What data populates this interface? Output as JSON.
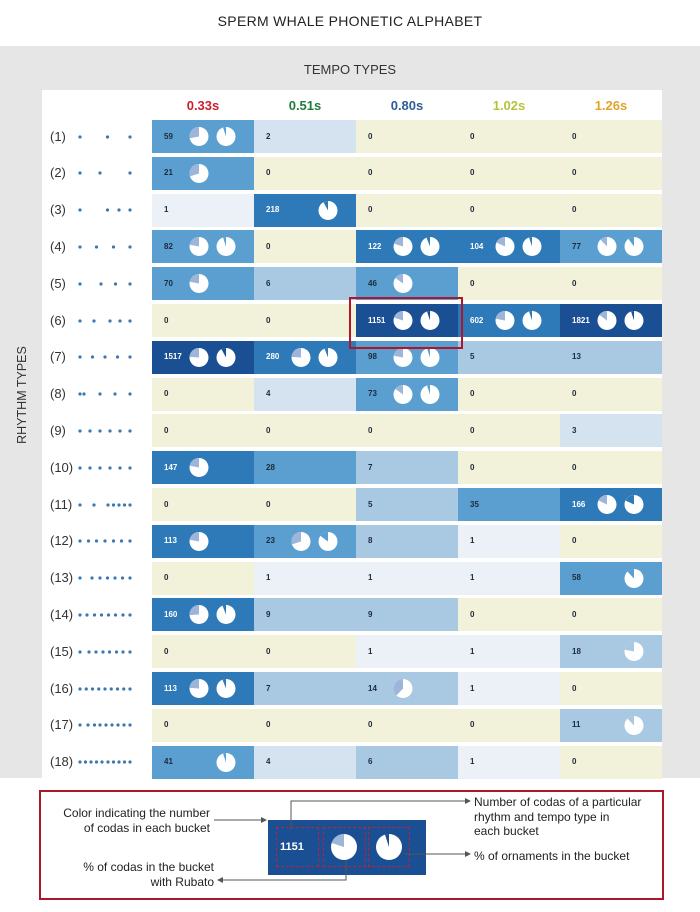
{
  "title": "SPERM WHALE PHONETIC ALPHABET",
  "chart_data": {
    "type": "heatmap",
    "column_axis_title": "TEMPO TYPES",
    "row_axis_title": "RHYTHM TYPES",
    "tempo_types": [
      {
        "label": "0.33s",
        "color": "#c8202f"
      },
      {
        "label": "0.51s",
        "color": "#1f7d3c"
      },
      {
        "label": "0.80s",
        "color": "#2d5d94"
      },
      {
        "label": "1.02s",
        "color": "#b7c23a"
      },
      {
        "label": "1.26s",
        "color": "#e3a32a"
      }
    ],
    "rhythm_types": [
      {
        "label": "(1)",
        "clicks": 3,
        "pattern": [
          0.0,
          0.55,
          1.0
        ]
      },
      {
        "label": "(2)",
        "clicks": 3,
        "pattern": [
          0.0,
          0.4,
          1.0
        ]
      },
      {
        "label": "(3)",
        "clicks": 4,
        "pattern": [
          0.0,
          0.55,
          0.78,
          1.0
        ]
      },
      {
        "label": "(4)",
        "clicks": 4,
        "pattern": [
          0.0,
          0.33,
          0.67,
          1.0
        ]
      },
      {
        "label": "(5)",
        "clicks": 4,
        "pattern": [
          0.0,
          0.42,
          0.71,
          1.0
        ]
      },
      {
        "label": "(6)",
        "clicks": 5,
        "pattern": [
          0.0,
          0.28,
          0.6,
          0.8,
          1.0
        ]
      },
      {
        "label": "(7)",
        "clicks": 5,
        "pattern": [
          0.0,
          0.25,
          0.5,
          0.75,
          1.0
        ]
      },
      {
        "label": "(8)",
        "clicks": 5,
        "pattern": [
          0.0,
          0.08,
          0.4,
          0.7,
          1.0
        ]
      },
      {
        "label": "(9)",
        "clicks": 6,
        "pattern": [
          0.0,
          0.2,
          0.4,
          0.6,
          0.8,
          1.0
        ]
      },
      {
        "label": "(10)",
        "clicks": 6,
        "pattern": [
          0.0,
          0.2,
          0.4,
          0.6,
          0.8,
          1.0
        ]
      },
      {
        "label": "(11)",
        "clicks": 7,
        "pattern": [
          0.0,
          0.28,
          0.56,
          0.67,
          0.78,
          0.89,
          1.0
        ]
      },
      {
        "label": "(12)",
        "clicks": 7,
        "pattern": [
          0.0,
          0.17,
          0.33,
          0.5,
          0.67,
          0.83,
          1.0
        ]
      },
      {
        "label": "(13)",
        "clicks": 7,
        "pattern": [
          0.0,
          0.24,
          0.4,
          0.55,
          0.7,
          0.85,
          1.0
        ]
      },
      {
        "label": "(14)",
        "clicks": 8,
        "pattern": [
          0.0,
          0.14,
          0.29,
          0.43,
          0.57,
          0.71,
          0.86,
          1.0
        ]
      },
      {
        "label": "(15)",
        "clicks": 8,
        "pattern": [
          0.0,
          0.18,
          0.32,
          0.46,
          0.59,
          0.73,
          0.86,
          1.0
        ]
      },
      {
        "label": "(16)",
        "clicks": 9,
        "pattern": [
          0.0,
          0.125,
          0.25,
          0.375,
          0.5,
          0.625,
          0.75,
          0.875,
          1.0
        ]
      },
      {
        "label": "(17)",
        "clicks": 9,
        "pattern": [
          0.0,
          0.16,
          0.29,
          0.4,
          0.52,
          0.64,
          0.76,
          0.88,
          1.0
        ]
      },
      {
        "label": "(18)",
        "clicks": 10,
        "pattern": [
          0.0,
          0.11,
          0.22,
          0.33,
          0.44,
          0.56,
          0.67,
          0.78,
          0.89,
          1.0
        ]
      }
    ],
    "codas": [
      [
        59,
        2,
        0,
        0,
        0
      ],
      [
        21,
        0,
        0,
        0,
        0
      ],
      [
        1,
        218,
        0,
        0,
        0
      ],
      [
        82,
        0,
        122,
        104,
        77
      ],
      [
        70,
        6,
        46,
        0,
        0
      ],
      [
        0,
        0,
        1151,
        602,
        1821
      ],
      [
        1517,
        280,
        98,
        5,
        13
      ],
      [
        0,
        4,
        73,
        0,
        0
      ],
      [
        0,
        0,
        0,
        0,
        3
      ],
      [
        147,
        28,
        7,
        0,
        0
      ],
      [
        0,
        0,
        5,
        35,
        166
      ],
      [
        113,
        23,
        8,
        1,
        0
      ],
      [
        0,
        1,
        1,
        1,
        58
      ],
      [
        160,
        9,
        9,
        0,
        0
      ],
      [
        0,
        0,
        1,
        1,
        18
      ],
      [
        113,
        7,
        14,
        1,
        0
      ],
      [
        0,
        0,
        0,
        0,
        11
      ],
      [
        41,
        4,
        6,
        1,
        0
      ]
    ],
    "rubato_fraction": [
      [
        0.28,
        null,
        null,
        null,
        null
      ],
      [
        0.3,
        null,
        null,
        null,
        null
      ],
      [
        null,
        null,
        null,
        null,
        null
      ],
      [
        0.22,
        null,
        0.2,
        0.18,
        0.12
      ],
      [
        0.22,
        null,
        0.15,
        null,
        null
      ],
      [
        null,
        null,
        0.2,
        0.22,
        0.15
      ],
      [
        0.24,
        0.24,
        0.22,
        null,
        null
      ],
      [
        null,
        null,
        0.15,
        null,
        null
      ],
      [
        null,
        null,
        null,
        null,
        null
      ],
      [
        0.22,
        null,
        null,
        null,
        null
      ],
      [
        null,
        null,
        null,
        null,
        0.18
      ],
      [
        0.22,
        0.3,
        null,
        null,
        null
      ],
      [
        null,
        null,
        null,
        null,
        null
      ],
      [
        0.26,
        null,
        null,
        null,
        null
      ],
      [
        null,
        null,
        null,
        null,
        null
      ],
      [
        0.24,
        null,
        0.38,
        null,
        null
      ],
      [
        null,
        null,
        null,
        null,
        null
      ],
      [
        null,
        null,
        null,
        null,
        null
      ]
    ],
    "ornament_fraction": [
      [
        0.05,
        null,
        null,
        null,
        null
      ],
      [
        null,
        null,
        null,
        null,
        null
      ],
      [
        null,
        0.08,
        null,
        null,
        null
      ],
      [
        0.05,
        null,
        0.06,
        0.05,
        0.1
      ],
      [
        null,
        null,
        null,
        null,
        null
      ],
      [
        null,
        null,
        0.05,
        0.05,
        0.05
      ],
      [
        0.08,
        0.06,
        0.05,
        null,
        null
      ],
      [
        null,
        null,
        0.05,
        null,
        null
      ],
      [
        null,
        null,
        null,
        null,
        null
      ],
      [
        null,
        null,
        null,
        null,
        null
      ],
      [
        null,
        null,
        null,
        null,
        0.18
      ],
      [
        null,
        0.15,
        null,
        null,
        null
      ],
      [
        null,
        null,
        null,
        null,
        0.12
      ],
      [
        0.06,
        null,
        null,
        null,
        null
      ],
      [
        null,
        null,
        null,
        null,
        0.22
      ],
      [
        0.06,
        null,
        null,
        null,
        null
      ],
      [
        null,
        null,
        null,
        null,
        0.12
      ],
      [
        0.05,
        null,
        null,
        null,
        null
      ]
    ],
    "cell_colors": {
      "very_high": "#1b4f94",
      "high": "#2e79b8",
      "mid": "#5a9fd0",
      "low": "#a9c9e3",
      "very_low": "#d4e3ef",
      "trace": "#ebf1f7",
      "zero": "#f2f1d9"
    },
    "rubato_color": "#9db5d9",
    "dot_color": "#3a78b0",
    "highlight_color": "#b0152a"
  },
  "legend": {
    "color_text": "Color indicating the number\nof codas in each bucket",
    "count_text": "Number of codas of a particular\nrhythm and tempo type in\neach bucket",
    "rubato_text": "% of codas in the bucket\nwith Rubato",
    "ornament_text": "% of ornaments in the bucket",
    "example_count": "1151",
    "example_rubato_fraction": 0.2,
    "example_ornament_fraction": 0.05
  }
}
